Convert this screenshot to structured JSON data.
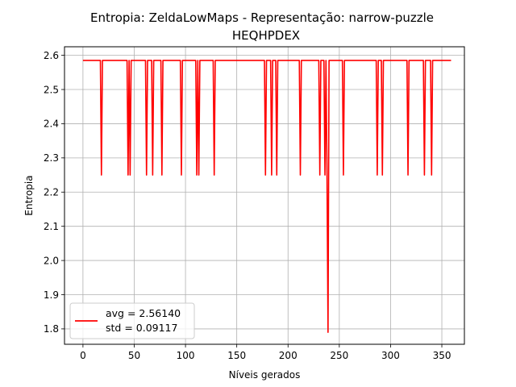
{
  "chart_data": {
    "type": "line",
    "title": "Entropia: ZeldaLowMaps - Representação: narrow-puzzle",
    "subtitle": "HEQHPDEX",
    "xlabel": "Níveis gerados",
    "ylabel": "Entropia",
    "xlim": [
      -18,
      372
    ],
    "ylim": [
      1.755,
      2.625
    ],
    "xticks": [
      0,
      50,
      100,
      150,
      200,
      250,
      300,
      350
    ],
    "yticks": [
      1.8,
      1.9,
      2.0,
      2.1,
      2.2,
      2.3,
      2.4,
      2.5,
      2.6
    ],
    "ytick_labels": [
      "1.8",
      "1.9",
      "2.0",
      "2.1",
      "2.2",
      "2.3",
      "2.4",
      "2.5",
      "2.6"
    ],
    "grid": true,
    "legend_placement": "lower-left",
    "line_color": "#ff0000",
    "baseline_value": 2.585,
    "n_points": 360,
    "dips": [
      {
        "x": 18,
        "y": 2.25
      },
      {
        "x": 44,
        "y": 2.25
      },
      {
        "x": 46,
        "y": 2.25
      },
      {
        "x": 62,
        "y": 2.25
      },
      {
        "x": 68,
        "y": 2.25
      },
      {
        "x": 77,
        "y": 2.25
      },
      {
        "x": 96,
        "y": 2.25
      },
      {
        "x": 111,
        "y": 2.25
      },
      {
        "x": 113,
        "y": 2.25
      },
      {
        "x": 128,
        "y": 2.25
      },
      {
        "x": 178,
        "y": 2.25
      },
      {
        "x": 184,
        "y": 2.25
      },
      {
        "x": 189,
        "y": 2.25
      },
      {
        "x": 212,
        "y": 2.25
      },
      {
        "x": 231,
        "y": 2.25
      },
      {
        "x": 236,
        "y": 2.25
      },
      {
        "x": 238,
        "y": 2.25
      },
      {
        "x": 239,
        "y": 1.79
      },
      {
        "x": 254,
        "y": 2.25
      },
      {
        "x": 287,
        "y": 2.25
      },
      {
        "x": 292,
        "y": 2.25
      },
      {
        "x": 317,
        "y": 2.25
      },
      {
        "x": 333,
        "y": 2.25
      },
      {
        "x": 340,
        "y": 2.25
      }
    ],
    "legend": {
      "avg_text": "avg = 2.56140",
      "std_text": "std = 0.09117"
    }
  }
}
